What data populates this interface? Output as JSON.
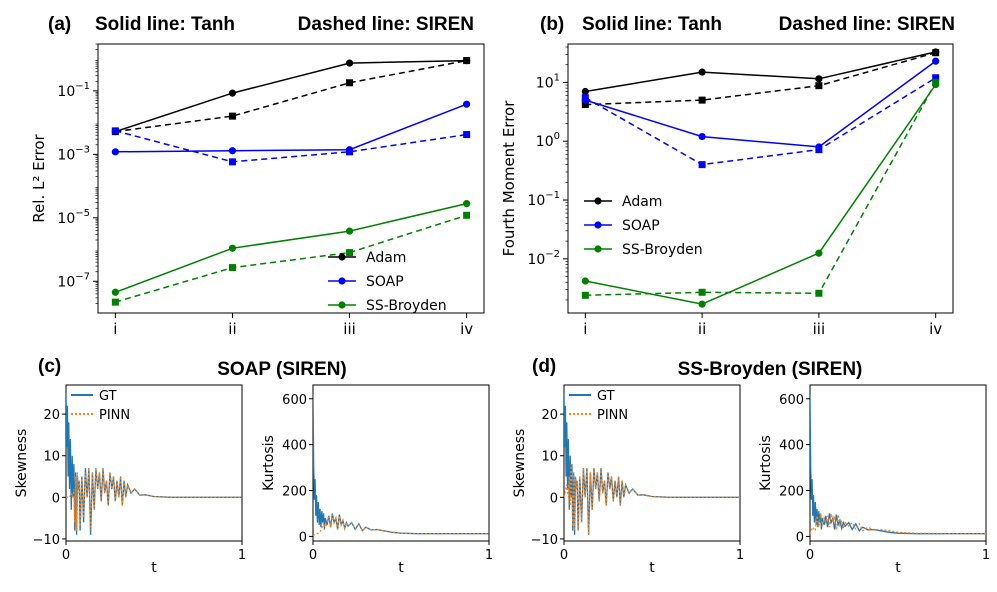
{
  "figure": {
    "panel_tags": {
      "a": "(a)",
      "b": "(b)",
      "c": "(c)",
      "d": "(d)"
    },
    "header_solid": "Solid line: Tanh",
    "header_dashed": "Dashed line: SIREN",
    "title_c": "SOAP (SIREN)",
    "title_d": "SS-Broyden (SIREN)"
  },
  "colors": {
    "adam": "#000000",
    "soap": "#0000ff",
    "ssbroyden": "#008000",
    "gt": "#1f77b4",
    "pinn": "#ff7f0e"
  },
  "chart_data": [
    {
      "id": "a",
      "type": "line",
      "title": "",
      "ylabel": "Rel. L² Error",
      "xlabel": "",
      "yscale": "log",
      "ylim": [
        1e-08,
        3.0
      ],
      "categories": [
        "i",
        "ii",
        "iii",
        "iv"
      ],
      "yticks": [
        {
          "v": 1e-07,
          "m": "10",
          "e": "−7"
        },
        {
          "v": 1e-05,
          "m": "10",
          "e": "−5"
        },
        {
          "v": 0.001,
          "m": "10",
          "e": "−3"
        },
        {
          "v": 0.1,
          "m": "10",
          "e": "−1"
        }
      ],
      "legend": {
        "position": "lower right",
        "entries": [
          "Adam",
          "SOAP",
          "SS-Broyden"
        ]
      },
      "series": [
        {
          "name": "Adam",
          "color_key": "adam",
          "style": "solid",
          "marker": "circle",
          "values": [
            0.0052,
            0.085,
            0.75,
            0.9
          ]
        },
        {
          "name": "Adam",
          "color_key": "adam",
          "style": "dashed",
          "marker": "square",
          "values": [
            0.0052,
            0.016,
            0.18,
            0.9
          ]
        },
        {
          "name": "SOAP",
          "color_key": "soap",
          "style": "solid",
          "marker": "circle",
          "values": [
            0.0012,
            0.0013,
            0.0014,
            0.038
          ]
        },
        {
          "name": "SOAP",
          "color_key": "soap",
          "style": "dashed",
          "marker": "square",
          "values": [
            0.0055,
            0.00058,
            0.0012,
            0.0042
          ]
        },
        {
          "name": "SS-Broyden",
          "color_key": "ssbroyden",
          "style": "solid",
          "marker": "circle",
          "values": [
            4.5e-08,
            1.1e-06,
            3.8e-06,
            2.8e-05
          ]
        },
        {
          "name": "SS-Broyden",
          "color_key": "ssbroyden",
          "style": "dashed",
          "marker": "square",
          "values": [
            2.2e-08,
            2.7e-07,
            8e-07,
            1.2e-05
          ]
        }
      ]
    },
    {
      "id": "b",
      "type": "line",
      "title": "",
      "ylabel": "Fourth Moment Error",
      "xlabel": "",
      "yscale": "log",
      "ylim": [
        0.0012,
        45
      ],
      "categories": [
        "i",
        "ii",
        "iii",
        "iv"
      ],
      "yticks": [
        {
          "v": 0.01,
          "m": "10",
          "e": "−2"
        },
        {
          "v": 0.1,
          "m": "10",
          "e": "−1"
        },
        {
          "v": 1,
          "m": "10",
          "e": "0"
        },
        {
          "v": 10,
          "m": "10",
          "e": "1"
        }
      ],
      "legend": {
        "position": "center left",
        "entries": [
          "Adam",
          "SOAP",
          "SS-Broyden"
        ]
      },
      "series": [
        {
          "name": "Adam",
          "color_key": "adam",
          "style": "solid",
          "marker": "circle",
          "values": [
            7,
            15,
            11.5,
            33
          ]
        },
        {
          "name": "Adam",
          "color_key": "adam",
          "style": "dashed",
          "marker": "square",
          "values": [
            4.2,
            5,
            8.8,
            32
          ]
        },
        {
          "name": "SOAP",
          "color_key": "soap",
          "style": "solid",
          "marker": "circle",
          "values": [
            5,
            1.2,
            0.8,
            23
          ]
        },
        {
          "name": "SOAP",
          "color_key": "soap",
          "style": "dashed",
          "marker": "square",
          "values": [
            5.5,
            0.4,
            0.72,
            12
          ]
        },
        {
          "name": "SS-Broyden",
          "color_key": "ssbroyden",
          "style": "solid",
          "marker": "circle",
          "values": [
            0.0042,
            0.0017,
            0.0125,
            9.2
          ]
        },
        {
          "name": "SS-Broyden",
          "color_key": "ssbroyden",
          "style": "dashed",
          "marker": "square",
          "values": [
            0.0024,
            0.0027,
            0.0026,
            10
          ]
        }
      ]
    },
    {
      "id": "c1",
      "type": "line",
      "ylabel": "Skewness",
      "xlabel": "t",
      "xlim": [
        0,
        1
      ],
      "ylim": [
        -10.5,
        27
      ],
      "xticks": [
        "0",
        "1"
      ],
      "yticks": [
        -10,
        0,
        10,
        20
      ],
      "legend": {
        "position": "upper right",
        "entries": [
          "GT",
          "PINN"
        ]
      },
      "series": [
        {
          "name": "GT",
          "color_key": "gt",
          "style": "solid",
          "x": [
            0,
            0.004,
            0.008,
            0.012,
            0.016,
            0.02,
            0.025,
            0.03,
            0.035,
            0.04,
            0.045,
            0.05,
            0.055,
            0.06,
            0.065,
            0.07,
            0.075,
            0.08,
            0.09,
            0.1,
            0.11,
            0.12,
            0.13,
            0.14,
            0.15,
            0.16,
            0.17,
            0.18,
            0.19,
            0.2,
            0.21,
            0.22,
            0.23,
            0.24,
            0.25,
            0.26,
            0.27,
            0.28,
            0.29,
            0.3,
            0.31,
            0.32,
            0.33,
            0.34,
            0.35,
            0.37,
            0.39,
            0.42,
            0.45,
            0.5,
            0.6,
            0.8,
            1.0
          ],
          "y": [
            25,
            12,
            22,
            5,
            18,
            2,
            14,
            -3,
            10,
            0,
            8,
            -8,
            6,
            -9,
            5,
            2,
            4,
            -8,
            5,
            -6,
            7,
            0,
            7,
            -9,
            6,
            -3,
            7,
            2,
            6,
            -1,
            7,
            1,
            4,
            -2,
            6,
            2,
            5,
            -1,
            4,
            0,
            5,
            -2,
            4,
            0,
            3,
            1,
            2,
            0.5,
            0.6,
            0.2,
            0,
            0,
            0
          ]
        },
        {
          "name": "PINN",
          "color_key": "pinn",
          "style": "dotted",
          "x": [
            0,
            0.02,
            0.03,
            0.04,
            0.045,
            0.05,
            0.055,
            0.06,
            0.065,
            0.07,
            0.075,
            0.08,
            0.09,
            0.1,
            0.11,
            0.12,
            0.13,
            0.14,
            0.15,
            0.16,
            0.17,
            0.18,
            0.19,
            0.2,
            0.21,
            0.22,
            0.23,
            0.24,
            0.25,
            0.26,
            0.27,
            0.28,
            0.29,
            0.3,
            0.31,
            0.32,
            0.33,
            0.34,
            0.35,
            0.37,
            0.39,
            0.42,
            0.45,
            0.5,
            0.6,
            0.8,
            1.0
          ],
          "y": [
            0,
            0,
            1,
            0,
            2,
            -6,
            5,
            -8,
            6,
            1,
            4,
            -7,
            5,
            -5,
            6,
            0,
            7,
            -8,
            6,
            -3,
            7,
            2,
            6,
            -1,
            7,
            1,
            4,
            -2,
            6,
            2,
            5,
            -1,
            4,
            0,
            5,
            -2,
            4,
            0,
            3,
            1,
            2,
            0.5,
            0.6,
            0.2,
            0,
            0,
            0
          ]
        }
      ]
    },
    {
      "id": "c2",
      "type": "line",
      "ylabel": "Kurtosis",
      "xlabel": "t",
      "xlim": [
        0,
        1
      ],
      "ylim": [
        -20,
        660
      ],
      "xticks": [
        "0",
        "1"
      ],
      "yticks": [
        0,
        200,
        400,
        600
      ],
      "series": [
        {
          "name": "GT",
          "color_key": "gt",
          "style": "solid",
          "x": [
            0,
            0.004,
            0.008,
            0.012,
            0.016,
            0.02,
            0.025,
            0.03,
            0.035,
            0.04,
            0.045,
            0.05,
            0.055,
            0.06,
            0.065,
            0.07,
            0.08,
            0.09,
            0.1,
            0.11,
            0.12,
            0.13,
            0.14,
            0.15,
            0.16,
            0.17,
            0.18,
            0.19,
            0.2,
            0.22,
            0.24,
            0.26,
            0.28,
            0.3,
            0.33,
            0.36,
            0.4,
            0.45,
            0.5,
            0.6,
            0.8,
            1.0
          ],
          "y": [
            620,
            300,
            160,
            250,
            90,
            180,
            60,
            150,
            50,
            120,
            40,
            110,
            60,
            100,
            30,
            80,
            50,
            90,
            40,
            100,
            60,
            80,
            30,
            95,
            50,
            70,
            35,
            60,
            45,
            60,
            30,
            55,
            25,
            40,
            28,
            30,
            25,
            18,
            14,
            12,
            12,
            12
          ]
        },
        {
          "name": "PINN",
          "color_key": "pinn",
          "style": "dotted",
          "x": [
            0,
            0.02,
            0.04,
            0.05,
            0.06,
            0.07,
            0.08,
            0.09,
            0.1,
            0.11,
            0.12,
            0.13,
            0.14,
            0.15,
            0.16,
            0.17,
            0.18,
            0.19,
            0.2,
            0.22,
            0.24,
            0.26,
            0.28,
            0.3,
            0.33,
            0.36,
            0.4,
            0.45,
            0.5,
            0.6,
            0.8,
            1.0
          ],
          "y": [
            5,
            10,
            20,
            35,
            60,
            40,
            55,
            85,
            40,
            95,
            60,
            80,
            30,
            90,
            50,
            70,
            35,
            60,
            45,
            60,
            30,
            55,
            25,
            40,
            28,
            30,
            25,
            18,
            14,
            12,
            12,
            12
          ]
        }
      ]
    },
    {
      "id": "d1",
      "type": "line",
      "ylabel": "Skewness",
      "xlabel": "t",
      "xlim": [
        0,
        1
      ],
      "ylim": [
        -10.5,
        27
      ],
      "xticks": [
        "0",
        "1"
      ],
      "yticks": [
        -10,
        0,
        10,
        20
      ],
      "legend": {
        "position": "upper right",
        "entries": [
          "GT",
          "PINN"
        ]
      },
      "series": [
        {
          "name": "GT",
          "color_key": "gt",
          "style": "solid",
          "x": [
            0,
            0.004,
            0.008,
            0.012,
            0.016,
            0.02,
            0.025,
            0.03,
            0.035,
            0.04,
            0.045,
            0.05,
            0.055,
            0.06,
            0.065,
            0.07,
            0.075,
            0.08,
            0.09,
            0.1,
            0.11,
            0.12,
            0.13,
            0.14,
            0.15,
            0.16,
            0.17,
            0.18,
            0.19,
            0.2,
            0.21,
            0.22,
            0.23,
            0.24,
            0.25,
            0.26,
            0.27,
            0.28,
            0.29,
            0.3,
            0.31,
            0.32,
            0.33,
            0.34,
            0.35,
            0.37,
            0.39,
            0.42,
            0.45,
            0.5,
            0.6,
            0.8,
            1.0
          ],
          "y": [
            25,
            12,
            22,
            5,
            18,
            2,
            14,
            -3,
            10,
            0,
            8,
            -8,
            6,
            -9,
            5,
            2,
            4,
            -8,
            5,
            -6,
            7,
            0,
            7,
            -9,
            6,
            -3,
            7,
            2,
            6,
            -1,
            7,
            1,
            4,
            -2,
            6,
            2,
            5,
            -1,
            4,
            0,
            5,
            -2,
            4,
            0,
            3,
            1,
            2,
            0.5,
            0.6,
            0.2,
            0,
            0,
            0
          ]
        },
        {
          "name": "PINN",
          "color_key": "pinn",
          "style": "dotted",
          "x": [
            0,
            0.015,
            0.025,
            0.03,
            0.035,
            0.04,
            0.045,
            0.05,
            0.055,
            0.06,
            0.065,
            0.07,
            0.075,
            0.08,
            0.09,
            0.1,
            0.11,
            0.12,
            0.13,
            0.14,
            0.15,
            0.16,
            0.17,
            0.18,
            0.19,
            0.2,
            0.21,
            0.22,
            0.23,
            0.24,
            0.25,
            0.26,
            0.27,
            0.28,
            0.29,
            0.3,
            0.31,
            0.32,
            0.33,
            0.34,
            0.35,
            0.37,
            0.39,
            0.42,
            0.45,
            0.5,
            0.6,
            0.8,
            1.0
          ],
          "y": [
            0,
            3,
            0,
            5,
            -2,
            8,
            1,
            -7,
            6,
            -8,
            5,
            2,
            4,
            -8,
            5,
            -6,
            7,
            0,
            7,
            -9,
            6,
            -3,
            7,
            2,
            6,
            -1,
            7,
            1,
            4,
            -2,
            6,
            2,
            5,
            -1,
            4,
            0,
            5,
            -2,
            4,
            0,
            3,
            1,
            2,
            0.5,
            0.6,
            0.2,
            0,
            0,
            0
          ]
        }
      ]
    },
    {
      "id": "d2",
      "type": "line",
      "ylabel": "Kurtosis",
      "xlabel": "t",
      "xlim": [
        0,
        1
      ],
      "ylim": [
        -20,
        660
      ],
      "xticks": [
        "0",
        "1"
      ],
      "yticks": [
        0,
        200,
        400,
        600
      ],
      "series": [
        {
          "name": "GT",
          "color_key": "gt",
          "style": "solid",
          "x": [
            0,
            0.004,
            0.008,
            0.012,
            0.016,
            0.02,
            0.025,
            0.03,
            0.035,
            0.04,
            0.045,
            0.05,
            0.055,
            0.06,
            0.065,
            0.07,
            0.08,
            0.09,
            0.1,
            0.11,
            0.12,
            0.13,
            0.14,
            0.15,
            0.16,
            0.17,
            0.18,
            0.19,
            0.2,
            0.22,
            0.24,
            0.26,
            0.28,
            0.3,
            0.33,
            0.36,
            0.4,
            0.45,
            0.5,
            0.6,
            0.8,
            1.0
          ],
          "y": [
            620,
            300,
            160,
            250,
            90,
            180,
            60,
            150,
            50,
            120,
            40,
            110,
            60,
            100,
            30,
            80,
            50,
            90,
            40,
            100,
            60,
            80,
            30,
            95,
            50,
            70,
            35,
            60,
            45,
            60,
            30,
            55,
            25,
            40,
            28,
            30,
            25,
            18,
            14,
            12,
            12,
            12
          ]
        },
        {
          "name": "PINN",
          "color_key": "pinn",
          "style": "dotted",
          "x": [
            0,
            0.015,
            0.03,
            0.04,
            0.05,
            0.06,
            0.07,
            0.08,
            0.09,
            0.1,
            0.11,
            0.12,
            0.13,
            0.14,
            0.15,
            0.16,
            0.17,
            0.18,
            0.19,
            0.2,
            0.22,
            0.24,
            0.26,
            0.28,
            0.3,
            0.33,
            0.36,
            0.4,
            0.45,
            0.5,
            0.6,
            0.8,
            1.0
          ],
          "y": [
            10,
            40,
            25,
            90,
            40,
            100,
            45,
            80,
            60,
            90,
            40,
            100,
            60,
            80,
            30,
            95,
            50,
            70,
            35,
            60,
            45,
            60,
            30,
            55,
            25,
            40,
            28,
            30,
            25,
            18,
            14,
            12,
            12
          ]
        }
      ]
    }
  ]
}
